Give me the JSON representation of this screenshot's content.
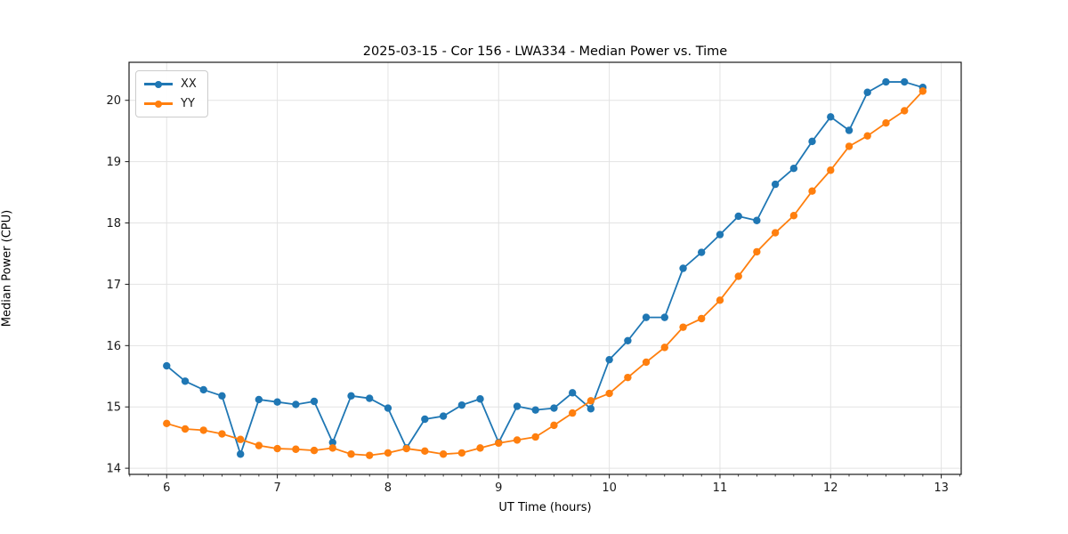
{
  "chart_data": {
    "type": "line",
    "title": "2025-03-15 - Cor 156 - LWA334 - Median Power vs. Time",
    "xlabel": "UT Time (hours)",
    "ylabel": "Median Power (CPU)",
    "xlim": [
      5.66,
      13.18
    ],
    "ylim": [
      13.9,
      20.62
    ],
    "x_ticks": [
      6,
      7,
      8,
      9,
      10,
      11,
      12,
      13
    ],
    "y_ticks": [
      14,
      15,
      16,
      17,
      18,
      19,
      20
    ],
    "x_minor_step_minutes": 10,
    "grid": true,
    "grid_color": "#e3e3e3",
    "spine_color": "#1a1a1a",
    "legend_position": "upper-left",
    "x": [
      6.0,
      6.167,
      6.333,
      6.5,
      6.667,
      6.833,
      7.0,
      7.167,
      7.333,
      7.5,
      7.667,
      7.833,
      8.0,
      8.167,
      8.333,
      8.5,
      8.667,
      8.833,
      9.0,
      9.167,
      9.333,
      9.5,
      9.667,
      9.833,
      10.0,
      10.167,
      10.333,
      10.5,
      10.667,
      10.833,
      11.0,
      11.167,
      11.333,
      11.5,
      11.667,
      11.833,
      12.0,
      12.167,
      12.333,
      12.5,
      12.667,
      12.833
    ],
    "series": [
      {
        "name": "XX",
        "color": "#1f77b4",
        "values": [
          15.67,
          15.42,
          15.28,
          15.18,
          14.23,
          15.12,
          15.08,
          15.04,
          15.09,
          14.42,
          15.18,
          15.14,
          14.98,
          14.33,
          14.8,
          14.85,
          15.03,
          15.13,
          14.42,
          15.01,
          14.95,
          14.98,
          15.23,
          14.97,
          15.77,
          16.08,
          16.46,
          16.46,
          17.26,
          17.52,
          17.81,
          18.11,
          18.04,
          18.63,
          18.89,
          19.33,
          19.73,
          19.51,
          20.13,
          20.3,
          20.3,
          20.21
        ]
      },
      {
        "name": "YY",
        "color": "#ff7f0e",
        "values": [
          14.73,
          14.64,
          14.62,
          14.56,
          14.47,
          14.37,
          14.32,
          14.31,
          14.29,
          14.33,
          14.23,
          14.21,
          14.25,
          14.32,
          14.28,
          14.23,
          14.25,
          14.33,
          14.41,
          14.46,
          14.51,
          14.7,
          14.9,
          15.1,
          15.22,
          15.48,
          15.73,
          15.97,
          16.3,
          16.44,
          16.74,
          17.13,
          17.53,
          17.84,
          18.12,
          18.52,
          18.86,
          19.25,
          19.42,
          19.63,
          19.83,
          20.15
        ]
      }
    ]
  }
}
